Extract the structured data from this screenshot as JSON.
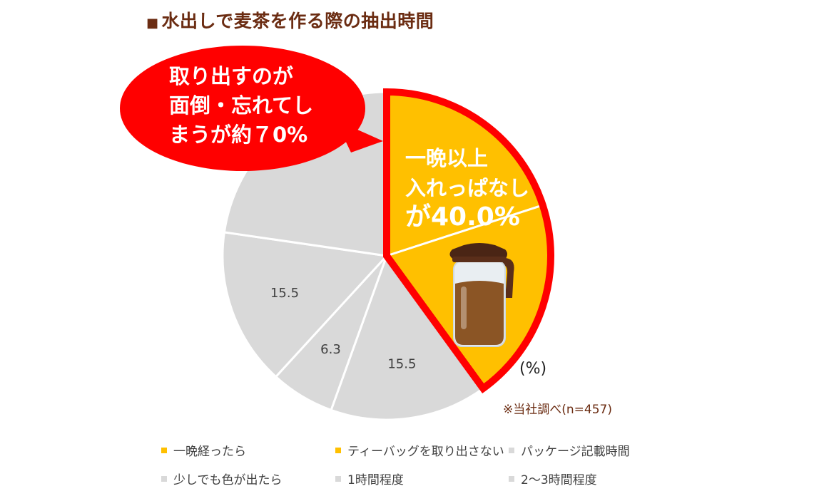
{
  "title": "水出しで麦茶を作る際の抽出時間",
  "title_marker": "■",
  "callout_text": [
    "取り出すのが",
    "面倒・忘れてし",
    "まうが約７0%"
  ],
  "highlight_text": [
    "一晩以上",
    "入れっぱなし",
    "が40.0%"
  ],
  "unit": "(%)",
  "source_note": "※当社調べ(n=457)",
  "colors": {
    "highlight": "#ffc000",
    "other": "#d9d9d9",
    "border": "#ff0000",
    "title": "#6b2c12"
  },
  "icons": [
    "pitcher-icon"
  ],
  "chart_data": {
    "type": "pie",
    "title": "水出しで麦茶を作る際の抽出時間",
    "unit": "%",
    "slices": [
      {
        "label": "一晩経ったら",
        "value": 20.0,
        "color": "#ffc000",
        "value_label": ""
      },
      {
        "label": "ティーバッグを取り出さない",
        "value": 20.0,
        "color": "#ffc000",
        "value_label": ""
      },
      {
        "label": "パッケージ記載時間",
        "value": 15.5,
        "color": "#d9d9d9",
        "value_label": "15.5"
      },
      {
        "label": "少しでも色が出たら",
        "value": 6.3,
        "color": "#d9d9d9",
        "value_label": "6.3"
      },
      {
        "label": "1時間程度",
        "value": 15.5,
        "color": "#d9d9d9",
        "value_label": "15.5"
      },
      {
        "label": "2～3時間程度",
        "value": 22.7,
        "color": "#d9d9d9",
        "value_label": ""
      }
    ],
    "legend": [
      {
        "label": "一晩経ったら",
        "color": "#ffc000"
      },
      {
        "label": "ティーバッグを取り出さない",
        "color": "#ffc000"
      },
      {
        "label": "パッケージ記載時間",
        "color": "#d9d9d9"
      },
      {
        "label": "少しでも色が出たら",
        "color": "#d9d9d9"
      },
      {
        "label": "1時間程度",
        "color": "#d9d9d9"
      },
      {
        "label": "2～3時間程度",
        "color": "#d9d9d9"
      }
    ],
    "legend_position": "bottom"
  }
}
